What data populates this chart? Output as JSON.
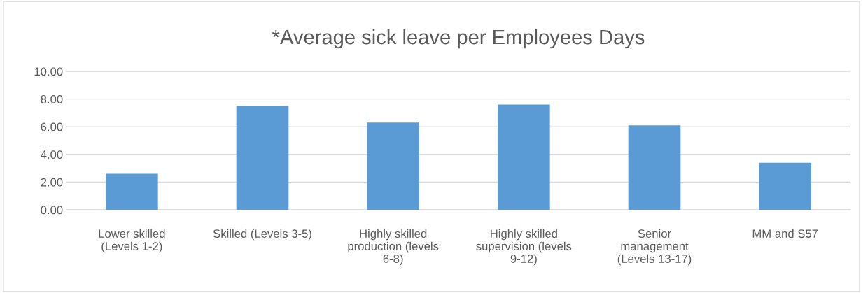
{
  "chart_data": {
    "type": "bar",
    "title": "*Average sick leave per Employees Days",
    "categories": [
      "Lower skilled\n(Levels 1-2)",
      "Skilled (Levels 3-5)",
      "Highly skilled\nproduction (levels\n6-8)",
      "Highly skilled\nsupervision (levels\n9-12)",
      "Senior\nmanagement\n(Levels 13-17)",
      "MM and S57"
    ],
    "values": [
      2.6,
      7.5,
      6.3,
      7.6,
      6.1,
      3.4
    ],
    "color": "#5b9bd5",
    "ylim": [
      0,
      10
    ],
    "yticks": [
      {
        "value": 0,
        "label": "0.00"
      },
      {
        "value": 2,
        "label": "2.00"
      },
      {
        "value": 4,
        "label": "4.00"
      },
      {
        "value": 6,
        "label": "6.00"
      },
      {
        "value": 8,
        "label": "8.00"
      },
      {
        "value": 10,
        "label": "10.00"
      }
    ],
    "grid": "y",
    "legend": false
  }
}
